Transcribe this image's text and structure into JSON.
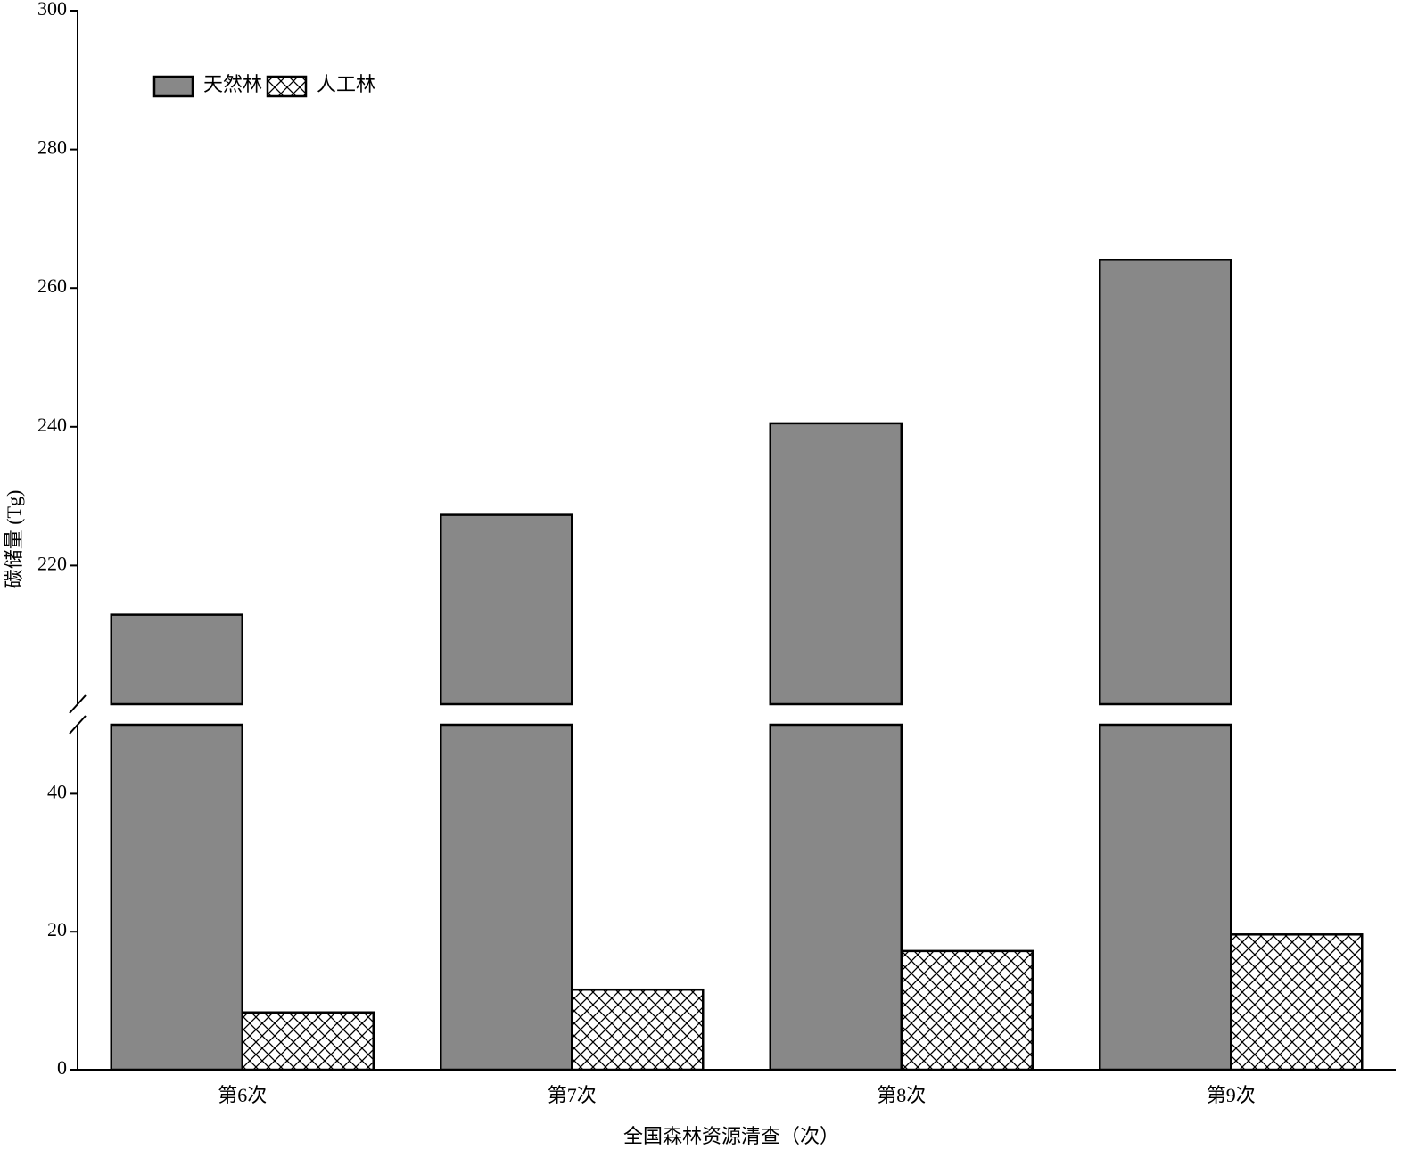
{
  "chart_data": {
    "type": "bar",
    "y_label": "碳储量 (Tg)",
    "x_label": "全国森林资源清查（次）",
    "categories": [
      "第6次",
      "第7次",
      "第8次",
      "第9次"
    ],
    "series": [
      {
        "name": "天然林",
        "color": "#888888",
        "values": [
          212.9,
          227.3,
          240.5,
          264.1
        ]
      },
      {
        "name": "人工林",
        "color": "#ffffff",
        "pattern": "crosshatch",
        "values": [
          8.3,
          11.6,
          17.2,
          19.6
        ]
      }
    ],
    "y_segments": [
      {
        "ylim": [
          0,
          50
        ],
        "yticks": [
          0,
          20,
          40
        ]
      },
      {
        "ylim": [
          200,
          300
        ],
        "yticks": [
          220,
          240,
          260,
          280,
          300
        ]
      }
    ],
    "broken_axis": true,
    "legend": "upper left"
  }
}
